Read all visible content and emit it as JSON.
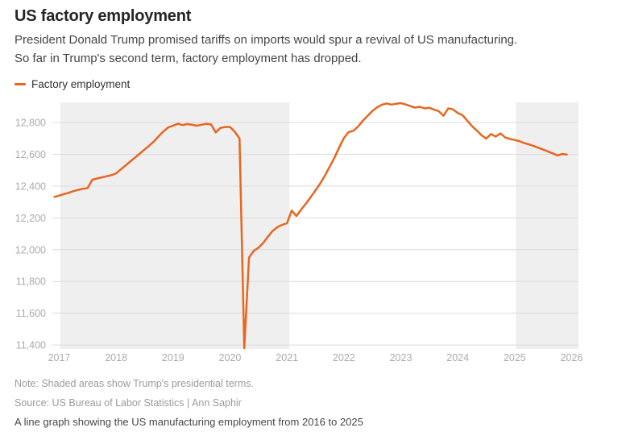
{
  "header": {
    "title": "US factory employment",
    "subtitle_line1": "President Donald Trump promised tariffs on imports would spur a revival of US manufacturing.",
    "subtitle_line2": "So far in Trump's second term, factory employment has dropped."
  },
  "legend": {
    "label": "Factory employment"
  },
  "chart_data": {
    "type": "line",
    "title": "US factory employment",
    "xlabel": "",
    "ylabel": "",
    "grid": true,
    "legend_position": "top-left",
    "xlim": [
      2016.88,
      2026.12
    ],
    "ylim": [
      11375,
      12927
    ],
    "x_ticks": [
      2017,
      2018,
      2019,
      2020,
      2021,
      2022,
      2023,
      2024,
      2025,
      2026
    ],
    "y_ticks": [
      {
        "value": 12800,
        "label": "12,800"
      },
      {
        "value": 12600,
        "label": "12,600"
      },
      {
        "value": 12400,
        "label": "12,400"
      },
      {
        "value": 12200,
        "label": "12,200"
      },
      {
        "value": 12000,
        "label": "12,000"
      },
      {
        "value": 11800,
        "label": "11,800"
      },
      {
        "value": 11600,
        "label": "11,600"
      },
      {
        "value": 11400,
        "label": "11,400"
      }
    ],
    "shaded_regions": [
      {
        "label": "Trump first presidential term",
        "x0": 2017.02,
        "x1": 2021.04
      },
      {
        "label": "Trump second presidential term",
        "x0": 2025.02,
        "x1": 2026.12
      }
    ],
    "colors": {
      "line": "#E8661E",
      "shading": "#EFEFEF",
      "gridline": "#DBDBDB",
      "axis_text": "#ABABAB"
    },
    "series": [
      {
        "name": "Factory employment",
        "color": "#E8661E",
        "x_start": 2016.9167,
        "x_step": 0.0833333,
        "values": [
          12332,
          12340,
          12350,
          12358,
          12368,
          12376,
          12383,
          12388,
          12440,
          12448,
          12455,
          12462,
          12468,
          12480,
          12505,
          12530,
          12555,
          12580,
          12605,
          12630,
          12655,
          12682,
          12715,
          12745,
          12770,
          12780,
          12792,
          12784,
          12790,
          12786,
          12780,
          12786,
          12792,
          12788,
          12738,
          12766,
          12772,
          12772,
          12742,
          12700,
          11380,
          11950,
          11992,
          12012,
          12042,
          12082,
          12118,
          12142,
          12156,
          12166,
          12246,
          12212,
          12252,
          12290,
          12330,
          12372,
          12416,
          12466,
          12522,
          12578,
          12642,
          12702,
          12740,
          12748,
          12775,
          12812,
          12842,
          12872,
          12896,
          12912,
          12920,
          12913,
          12918,
          12922,
          12914,
          12903,
          12894,
          12899,
          12889,
          12893,
          12882,
          12871,
          12843,
          12889,
          12883,
          12860,
          12846,
          12812,
          12778,
          12750,
          12720,
          12699,
          12727,
          12712,
          12731,
          12706,
          12696,
          12690,
          12683,
          12671,
          12662,
          12652,
          12641,
          12630,
          12618,
          12606,
          12593,
          12602,
          12599
        ]
      }
    ]
  },
  "footer": {
    "note": "Note: Shaded areas show Trump's presidential terms.",
    "source": "Source: US Bureau of Labor Statistics | Ann Saphir",
    "caption": "A line graph showing the US manufacturing employment from 2016 to 2025"
  }
}
